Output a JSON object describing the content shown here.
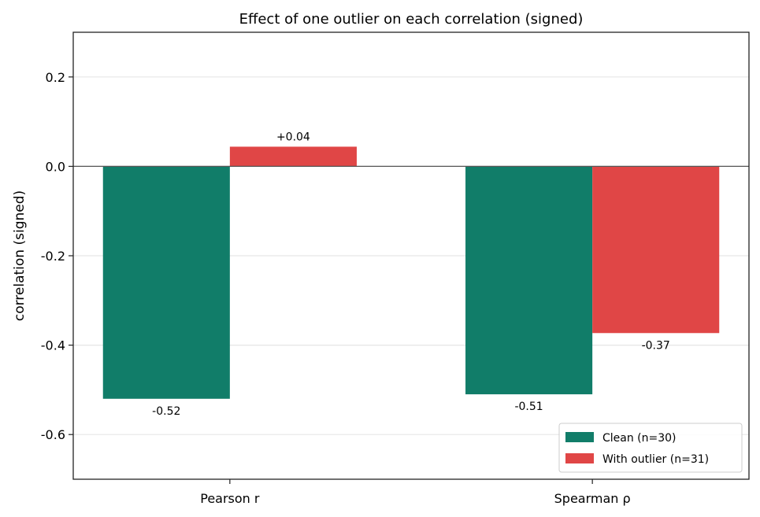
{
  "chart_data": {
    "type": "bar",
    "title": "Effect of one outlier on each correlation (signed)",
    "xlabel": "",
    "ylabel": "correlation (signed)",
    "ylim": [
      -0.7,
      0.3
    ],
    "yticks": [
      0.2,
      0.0,
      -0.2,
      -0.4,
      -0.6
    ],
    "ytick_labels": [
      "0.2",
      "0.0",
      "-0.2",
      "-0.4",
      "-0.6"
    ],
    "grid": "horizontal",
    "legend_position": "bottom-right",
    "categories": [
      "Pearson r",
      "Spearman ρ"
    ],
    "series": [
      {
        "name": "Clean (n=30)",
        "color": "#117d69",
        "values": [
          -0.52,
          -0.51
        ],
        "labels": [
          "-0.52",
          "-0.51"
        ]
      },
      {
        "name": "With outlier (n=31)",
        "color": "#e04646",
        "values": [
          0.044,
          -0.373
        ],
        "labels": [
          "+0.04",
          "-0.37"
        ]
      }
    ]
  }
}
